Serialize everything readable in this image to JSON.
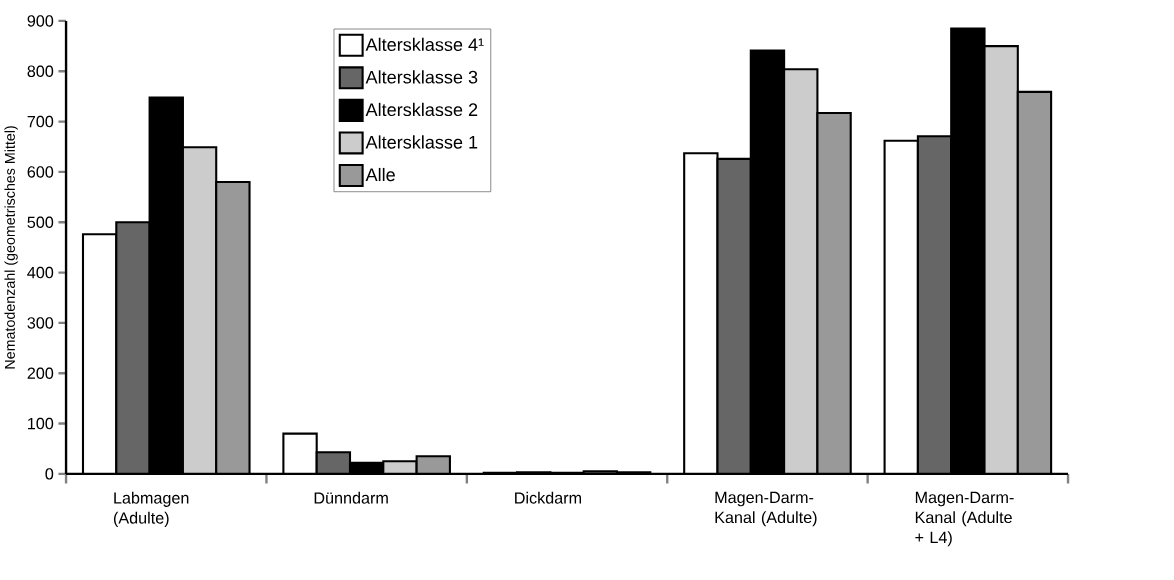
{
  "chart_data": {
    "type": "bar",
    "ylabel": "Nematodenzahl (geometrisches Mittel)",
    "categories": [
      "Labmagen (Adulte)",
      "Dünndarm",
      "Dickdarm",
      "Magen-Darm-Kanal (Adulte)",
      "Magen-Darm-Kanal (Adulte + L4)"
    ],
    "series": [
      {
        "name": "Altersklasse 4¹",
        "color": "#ffffff",
        "values": [
          476,
          80,
          2,
          637,
          662
        ]
      },
      {
        "name": "Altersklasse 3",
        "color": "#666666",
        "values": [
          500,
          43,
          3,
          626,
          671
        ]
      },
      {
        "name": "Altersklasse 2",
        "color": "#000000",
        "values": [
          748,
          22,
          2,
          841,
          885
        ]
      },
      {
        "name": "Altersklasse 1",
        "color": "#cccccc",
        "values": [
          649,
          25,
          5,
          804,
          850
        ]
      },
      {
        "name": "Alle",
        "color": "#999999",
        "values": [
          580,
          35,
          3,
          717,
          759
        ]
      }
    ],
    "ylim": [
      0,
      900
    ],
    "yticks": [
      0,
      100,
      200,
      300,
      400,
      500,
      600,
      700,
      800,
      900
    ],
    "legend": "top"
  }
}
